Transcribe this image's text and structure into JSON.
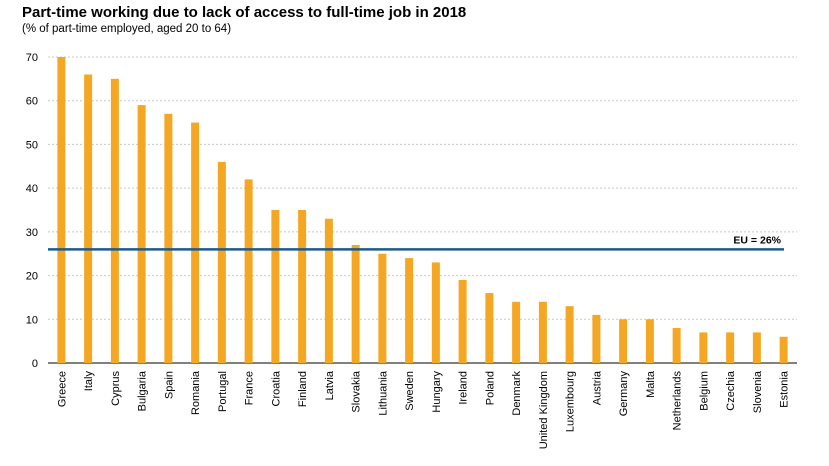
{
  "title": "Part-time working due to lack of access to full-time job in 2018",
  "subtitle": "(% of part-time employed, aged 20 to 64)",
  "colors": {
    "bar": "#F5A623",
    "reference": "#1F5A8C",
    "grid": "#c8c8c8"
  },
  "chart_data": {
    "type": "bar",
    "title": "Part-time working due to lack of access to full-time job in 2018",
    "subtitle": "(% of part-time employed, aged 20 to 64)",
    "xlabel": "",
    "ylabel": "",
    "ylim": [
      0,
      70
    ],
    "yticks": [
      0,
      10,
      20,
      30,
      40,
      50,
      60,
      70
    ],
    "grid": true,
    "categories": [
      "Greece",
      "Italy",
      "Cyprus",
      "Bulgaria",
      "Spain",
      "Romania",
      "Portugal",
      "France",
      "Croatia",
      "Finland",
      "Latvia",
      "Slovakia",
      "Lithuania",
      "Sweden",
      "Hungary",
      "Ireland",
      "Poland",
      "Denmark",
      "United Kingdom",
      "Luxembourg",
      "Austria",
      "Germany",
      "Malta",
      "Netherlands",
      "Belgium",
      "Czechia",
      "Slovenia",
      "Estonia"
    ],
    "values": [
      70,
      66,
      65,
      59,
      57,
      55,
      46,
      42,
      35,
      35,
      33,
      27,
      25,
      24,
      23,
      19,
      16,
      14,
      14,
      13,
      11,
      10,
      10,
      8,
      7,
      7,
      7,
      6
    ],
    "reference_line": {
      "label": "EU = 26%",
      "value": 26
    }
  }
}
